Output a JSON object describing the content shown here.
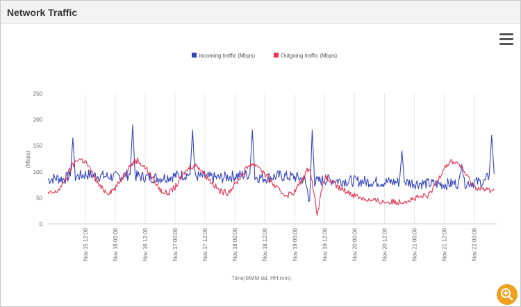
{
  "panel": {
    "title": "Network Traffic"
  },
  "icons": {
    "menu": "hamburger-menu-icon",
    "zoom": "zoom-in-icon"
  },
  "chart_data": {
    "type": "line",
    "title": "",
    "ylabel": "(Mbps)",
    "xlabel": "Time(MMM dd, HH:mm)",
    "ylim": [
      0,
      250
    ],
    "yticks": [
      0,
      50,
      100,
      150,
      200,
      250
    ],
    "xlim": [
      "2023-11-14 21:00",
      "2023-11-22 09:00"
    ],
    "xticks": [
      "Nov 15 12:00",
      "Nov 16 00:00",
      "Nov 16 12:00",
      "Nov 17 00:00",
      "Nov 17 12:00",
      "Nov 18 00:00",
      "Nov 18 12:00",
      "Nov 19 00:00",
      "Nov 19 12:00",
      "Nov 20 00:00",
      "Nov 20 12:00",
      "Nov 21 00:00",
      "Nov 21 12:00",
      "Nov 22 00:00"
    ],
    "grid": "vertical",
    "legend_position": "top-center",
    "series": [
      {
        "name": "Incoming traffic (Mbps)",
        "color": "#3344bb",
        "x": [
          "2023-11-14 21:00",
          "2023-11-15 00:00",
          "2023-11-15 03:00",
          "2023-11-15 06:00",
          "2023-11-15 07:00",
          "2023-11-15 08:00",
          "2023-11-15 12:00",
          "2023-11-15 18:00",
          "2023-11-16 00:00",
          "2023-11-16 06:00",
          "2023-11-16 07:00",
          "2023-11-16 08:00",
          "2023-11-16 12:00",
          "2023-11-16 18:00",
          "2023-11-17 00:00",
          "2023-11-17 06:00",
          "2023-11-17 07:00",
          "2023-11-17 08:00",
          "2023-11-17 12:00",
          "2023-11-17 18:00",
          "2023-11-18 00:00",
          "2023-11-18 06:00",
          "2023-11-18 07:00",
          "2023-11-18 08:00",
          "2023-11-18 12:00",
          "2023-11-18 18:00",
          "2023-11-19 00:00",
          "2023-11-19 04:00",
          "2023-11-19 06:00",
          "2023-11-19 07:00",
          "2023-11-19 08:00",
          "2023-11-19 12:00",
          "2023-11-19 18:00",
          "2023-11-20 00:00",
          "2023-11-20 12:00",
          "2023-11-20 18:00",
          "2023-11-20 19:00",
          "2023-11-20 20:00",
          "2023-11-21 00:00",
          "2023-11-21 12:00",
          "2023-11-21 18:00",
          "2023-11-21 19:00",
          "2023-11-21 20:00",
          "2023-11-22 00:00",
          "2023-11-22 04:00",
          "2023-11-22 06:00",
          "2023-11-22 07:00",
          "2023-11-22 08:00"
        ],
        "values": [
          85,
          88,
          86,
          92,
          165,
          90,
          95,
          92,
          90,
          95,
          190,
          92,
          90,
          88,
          92,
          95,
          180,
          92,
          90,
          88,
          92,
          95,
          180,
          90,
          88,
          92,
          90,
          85,
          45,
          180,
          80,
          85,
          83,
          82,
          80,
          80,
          140,
          80,
          78,
          76,
          78,
          125,
          78,
          80,
          80,
          92,
          170,
          95
        ]
      },
      {
        "name": "Outgoing traffic (Mbps)",
        "color": "#e63350",
        "x": [
          "2023-11-14 21:00",
          "2023-11-15 00:00",
          "2023-11-15 03:00",
          "2023-11-15 06:00",
          "2023-11-15 09:00",
          "2023-11-15 12:00",
          "2023-11-15 15:00",
          "2023-11-15 18:00",
          "2023-11-15 21:00",
          "2023-11-16 00:00",
          "2023-11-16 03:00",
          "2023-11-16 06:00",
          "2023-11-16 09:00",
          "2023-11-16 12:00",
          "2023-11-16 15:00",
          "2023-11-16 18:00",
          "2023-11-16 21:00",
          "2023-11-17 00:00",
          "2023-11-17 03:00",
          "2023-11-17 06:00",
          "2023-11-17 09:00",
          "2023-11-17 12:00",
          "2023-11-17 15:00",
          "2023-11-17 18:00",
          "2023-11-17 21:00",
          "2023-11-18 00:00",
          "2023-11-18 03:00",
          "2023-11-18 06:00",
          "2023-11-18 09:00",
          "2023-11-18 12:00",
          "2023-11-18 15:00",
          "2023-11-18 18:00",
          "2023-11-18 21:00",
          "2023-11-19 00:00",
          "2023-11-19 03:00",
          "2023-11-19 06:00",
          "2023-11-19 09:00",
          "2023-11-19 12:00",
          "2023-11-19 18:00",
          "2023-11-20 00:00",
          "2023-11-20 06:00",
          "2023-11-20 12:00",
          "2023-11-20 18:00",
          "2023-11-21 00:00",
          "2023-11-21 06:00",
          "2023-11-21 09:00",
          "2023-11-21 12:00",
          "2023-11-21 15:00",
          "2023-11-21 18:00",
          "2023-11-21 21:00",
          "2023-11-22 00:00",
          "2023-11-22 04:00",
          "2023-11-22 08:00"
        ],
        "values": [
          58,
          60,
          75,
          105,
          125,
          120,
          95,
          70,
          60,
          68,
          90,
          112,
          122,
          108,
          88,
          65,
          58,
          70,
          92,
          110,
          112,
          95,
          78,
          62,
          60,
          75,
          95,
          115,
          113,
          95,
          78,
          62,
          55,
          62,
          85,
          110,
          20,
          90,
          68,
          55,
          45,
          42,
          42,
          48,
          55,
          80,
          110,
          120,
          115,
          92,
          72,
          65,
          65
        ]
      }
    ]
  }
}
